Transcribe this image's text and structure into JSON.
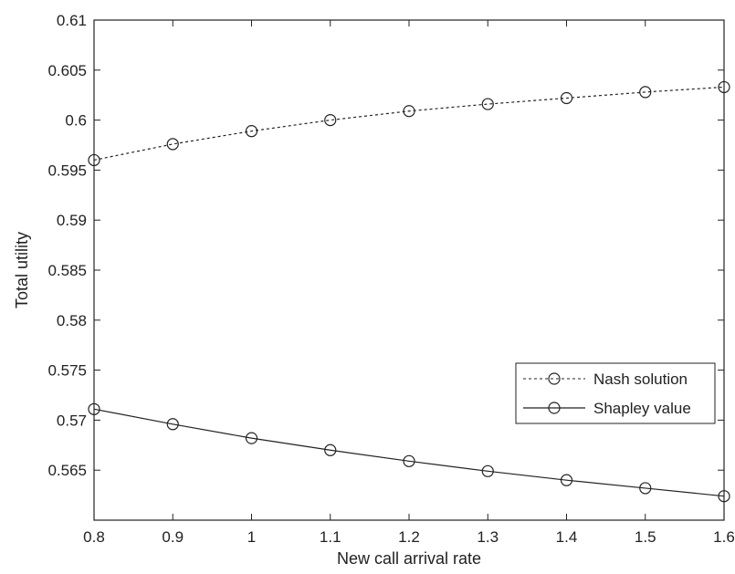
{
  "chart_data": {
    "type": "line",
    "title": "",
    "xlabel": "New call arrival rate",
    "ylabel": "Total utility",
    "xlim": [
      0.8,
      1.6
    ],
    "ylim": [
      0.56,
      0.61
    ],
    "xticks": [
      0.8,
      0.9,
      1.0,
      1.1,
      1.2,
      1.3,
      1.4,
      1.5,
      1.6
    ],
    "xtick_labels": [
      "0.8",
      "0.9",
      "1",
      "1.1",
      "1.2",
      "1.3",
      "1.4",
      "1.5",
      "1.6"
    ],
    "yticks": [
      0.565,
      0.57,
      0.575,
      0.58,
      0.585,
      0.59,
      0.595,
      0.6,
      0.605,
      0.61
    ],
    "ytick_labels": [
      "0.565",
      "0.57",
      "0.575",
      "0.58",
      "0.585",
      "0.59",
      "0.595",
      "0.6",
      "0.605",
      "0.61"
    ],
    "grid": false,
    "legend_position": "bottom-right",
    "x": [
      0.8,
      0.9,
      1.0,
      1.1,
      1.2,
      1.3,
      1.4,
      1.5,
      1.6
    ],
    "series": [
      {
        "name": "Nash solution",
        "style": "dashed",
        "marker": "circle",
        "color": "#222222",
        "values": [
          0.596,
          0.5976,
          0.5989,
          0.6,
          0.6009,
          0.6016,
          0.6022,
          0.6028,
          0.6033
        ]
      },
      {
        "name": "Shapley value",
        "style": "solid",
        "marker": "circle",
        "color": "#222222",
        "values": [
          0.5711,
          0.5696,
          0.5682,
          0.567,
          0.5659,
          0.5649,
          0.564,
          0.5632,
          0.5624
        ]
      }
    ]
  }
}
